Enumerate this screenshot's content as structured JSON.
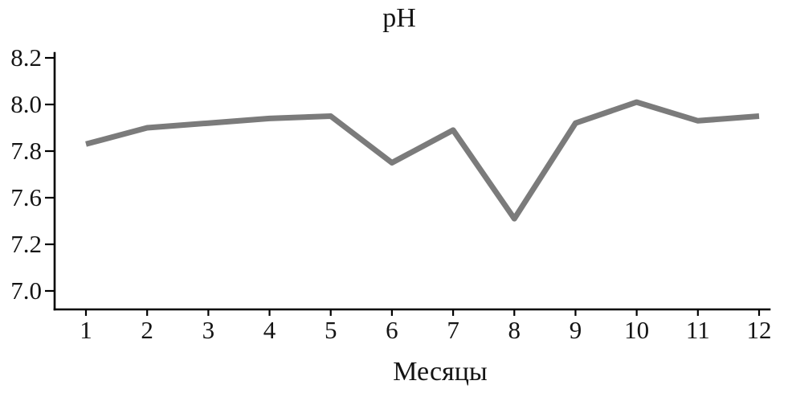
{
  "colors": {
    "background": "#ffffff",
    "axis": "#000000",
    "text": "#141414",
    "line": "#7b7b7b"
  },
  "chart_data": {
    "type": "line",
    "title": "pH",
    "xlabel": "Месяцы",
    "ylabel": "",
    "x": [
      "1",
      "2",
      "3",
      "4",
      "5",
      "6",
      "7",
      "8",
      "9",
      "10",
      "11",
      "12"
    ],
    "values": [
      7.83,
      7.9,
      7.92,
      7.94,
      7.95,
      7.75,
      7.89,
      7.51,
      7.92,
      8.01,
      7.93,
      7.95
    ],
    "y_tick_labels": [
      "8.2",
      "8.0",
      "7.8",
      "7.6",
      "7.2",
      "7.0"
    ],
    "ylim": [
      7.0,
      8.2
    ],
    "grid": false,
    "legend": "none"
  }
}
